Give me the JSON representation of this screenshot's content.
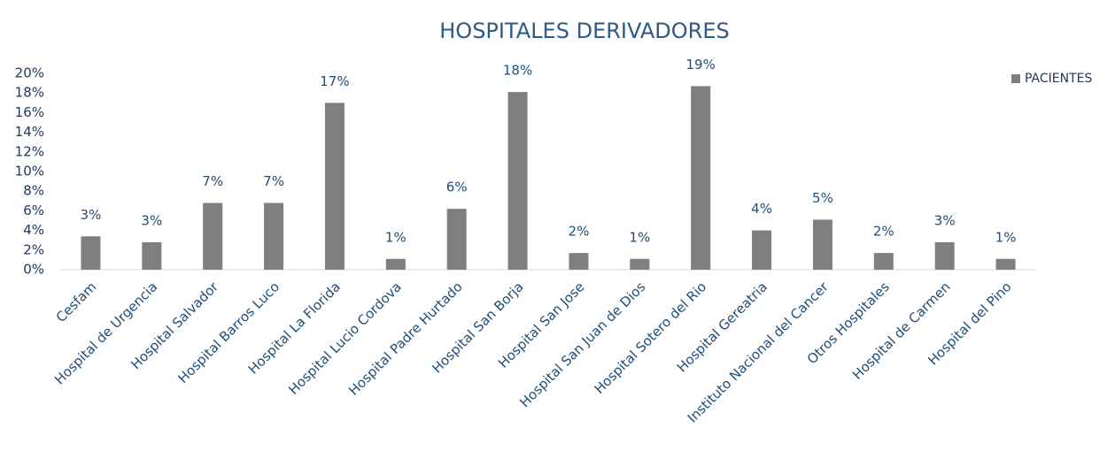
{
  "chart_data": {
    "type": "bar",
    "title": "HOSPITALES DERIVADORES",
    "categories": [
      "Cesfam",
      "Hospital de Urgencia",
      "Hospital Salvador",
      "Hospital Barros Luco",
      "Hospital La Florida",
      "Hospital Lucio Cordova",
      "Hospital Padre Hurtado",
      "Hospital San Borja",
      "Hospital San Jose",
      "Hospital San Juan de Dios",
      "Hospital Sotero del Rio",
      "Hospital Gereatria",
      "Instituto Nacional del Cancer",
      "Otros Hospitales",
      "Hospital de Carmen",
      "Hospital del Pino"
    ],
    "series": [
      {
        "name": "PACIENTES",
        "color": "#7f7f7f",
        "values": [
          3.4,
          2.8,
          6.8,
          6.8,
          17,
          1.1,
          6.2,
          18.1,
          1.7,
          1.1,
          18.7,
          4,
          5.1,
          1.7,
          2.8,
          1.1
        ],
        "value_labels": [
          "3%",
          "3%",
          "7%",
          "7%",
          "17%",
          "1%",
          "6%",
          "18%",
          "2%",
          "1%",
          "19%",
          "4%",
          "5%",
          "2%",
          "3%",
          "1%"
        ]
      }
    ],
    "ylim": [
      0,
      20
    ],
    "yticks": [
      {
        "value": 0,
        "label": "0%"
      },
      {
        "value": 2,
        "label": "2%"
      },
      {
        "value": 4,
        "label": "4%"
      },
      {
        "value": 6,
        "label": "6%"
      },
      {
        "value": 8,
        "label": "8%"
      },
      {
        "value": 10,
        "label": "10%"
      },
      {
        "value": 12,
        "label": "12%"
      },
      {
        "value": 14,
        "label": "14%"
      },
      {
        "value": 16,
        "label": "16%"
      },
      {
        "value": 18,
        "label": "18%"
      },
      {
        "value": 20,
        "label": "20%"
      }
    ],
    "grid": false,
    "legend": "top-right"
  }
}
